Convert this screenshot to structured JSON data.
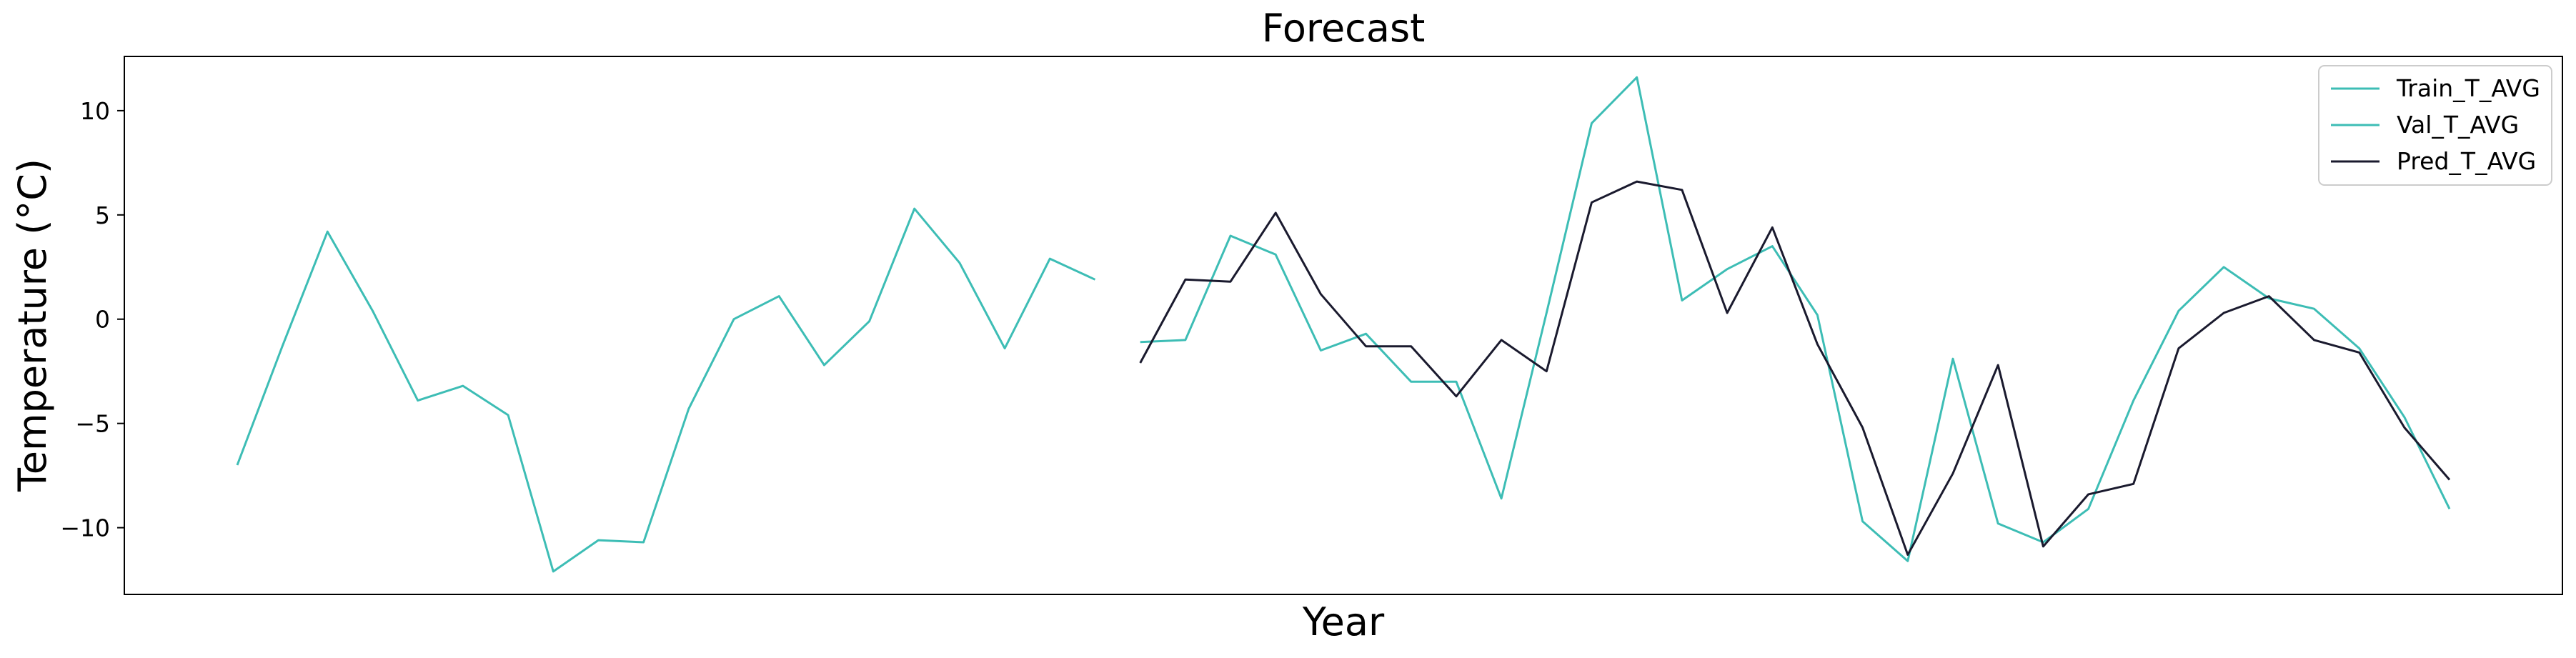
{
  "chart_data": {
    "type": "line",
    "title": "Forecast",
    "xlabel": "Year",
    "ylabel": "Temperature (°C)",
    "ylim": [
      -13.2,
      12.6
    ],
    "yticks": [
      10,
      5,
      0,
      -5,
      -10
    ],
    "ytick_labels": [
      "10",
      "5",
      "0",
      "−5",
      "−10"
    ],
    "x_tick_labels_shown": false,
    "grid": false,
    "legend_position": "top-right",
    "series": [
      {
        "name": "Train_T_AVG",
        "color": "#3dbdb5",
        "x": [
          0,
          1,
          2,
          3,
          4,
          5,
          6,
          7,
          8,
          9,
          10,
          11,
          12,
          13,
          14,
          15,
          16,
          17,
          18,
          19
        ],
        "values": [
          -7.0,
          -1.3,
          4.2,
          0.4,
          -3.9,
          -3.2,
          -4.6,
          -12.1,
          -10.6,
          -10.7,
          -4.3,
          0.0,
          1.1,
          -2.2,
          -0.1,
          5.3,
          2.7,
          -1.4,
          2.9,
          1.9
        ]
      },
      {
        "name": "Val_T_AVG",
        "color": "#3dbdb5",
        "x": [
          20,
          21,
          22,
          23,
          24,
          25,
          26,
          27,
          28,
          29,
          30,
          31,
          32,
          33,
          34,
          35,
          36,
          37,
          38,
          39,
          40,
          41,
          42,
          43,
          44,
          45,
          46,
          47,
          48,
          49
        ],
        "values": [
          -1.1,
          -1.0,
          4.0,
          3.1,
          -1.5,
          -0.7,
          -3.0,
          -3.0,
          -8.6,
          0.3,
          9.4,
          11.6,
          0.9,
          2.4,
          3.5,
          0.2,
          -9.7,
          -11.6,
          -1.9,
          -9.8,
          -10.7,
          -9.1,
          -3.9,
          0.4,
          2.5,
          1.0,
          0.5,
          -1.4,
          -4.7,
          -9.1
        ]
      },
      {
        "name": "Pred_T_AVG",
        "color": "#1a1a2e",
        "x": [
          20,
          21,
          22,
          23,
          24,
          25,
          26,
          27,
          28,
          29,
          30,
          31,
          32,
          33,
          34,
          35,
          36,
          37,
          38,
          39,
          40,
          41,
          42,
          43,
          44,
          45,
          46,
          47,
          48,
          49
        ],
        "values": [
          -2.1,
          1.9,
          1.8,
          5.1,
          1.2,
          -1.3,
          -1.3,
          -3.7,
          -1.0,
          -2.5,
          5.6,
          6.6,
          6.2,
          0.3,
          4.4,
          -1.2,
          -5.2,
          -11.3,
          -7.4,
          -2.2,
          -10.9,
          -8.4,
          -7.9,
          -1.4,
          0.3,
          1.1,
          -1.0,
          -1.6,
          -5.2,
          -7.7
        ]
      }
    ]
  }
}
